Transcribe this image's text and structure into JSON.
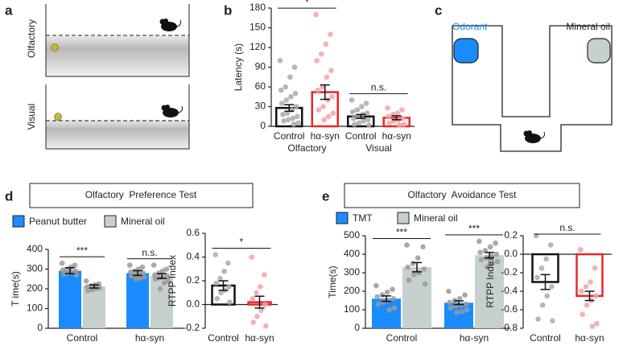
{
  "panel_a": {
    "letter": "a",
    "rows": [
      "Olfactory",
      "Visual"
    ]
  },
  "panel_b": {
    "letter": "b"
  },
  "panel_c": {
    "letter": "c",
    "left_label": "Odorant",
    "right_label": "Mineral oil"
  },
  "panel_d": {
    "letter": "d",
    "title": "Olfactory  Preference Test"
  },
  "panel_e": {
    "letter": "e",
    "title": "Olfactory  Avoidance Test"
  },
  "chart_data": [
    {
      "type": "bar",
      "ylabel": "Latency (s)",
      "categories": [
        "Control",
        "hα-syn",
        "Control",
        "hα-syn"
      ],
      "groups": [
        "Olfactory",
        "Visual"
      ],
      "values": [
        28,
        52,
        15,
        13
      ],
      "errors": [
        5,
        11,
        3,
        3
      ],
      "colors": [
        "#111111",
        "#e8262a",
        "#111111",
        "#e8262a"
      ],
      "point_colors": [
        "#aaaaaa",
        "#f5a3a3",
        "#aaaaaa",
        "#f5a3a3"
      ],
      "points": [
        [
          100,
          90,
          75,
          60,
          55,
          50,
          45,
          40,
          35,
          30,
          25,
          20,
          18,
          15,
          12,
          10,
          8,
          5,
          3
        ],
        [
          170,
          140,
          125,
          110,
          100,
          85,
          75,
          60,
          55,
          45,
          40,
          30,
          25,
          20,
          15,
          10
        ],
        [
          40,
          35,
          30,
          25,
          22,
          20,
          18,
          15,
          12,
          10,
          8,
          5,
          3,
          2
        ],
        [
          28,
          25,
          20,
          18,
          15,
          12,
          10,
          8,
          5,
          3,
          2
        ]
      ],
      "significance": [
        "*",
        "n.s."
      ],
      "ylim": [
        0,
        180
      ],
      "yticks": [
        0,
        30,
        60,
        90,
        120,
        150,
        180
      ]
    },
    {
      "type": "grouped-bar",
      "ylabel": "T ime(s)",
      "categories": [
        "Control",
        "hα-syn"
      ],
      "series": [
        {
          "name": "Peanut butter",
          "color": "#1a8cff",
          "values": [
            292,
            280
          ],
          "errors": [
            15,
            12
          ],
          "points": [
            [
              330,
              320,
              310,
              300,
              295,
              290,
              285,
              280,
              275,
              270
            ],
            [
              320,
              310,
              300,
              290,
              285,
              280,
              275,
              270,
              265,
              260,
              255,
              250
            ]
          ]
        },
        {
          "name": "Mineral oil",
          "color": "#c6d1cd",
          "values": [
            212,
            265
          ],
          "errors": [
            8,
            12
          ],
          "points": [
            [
              240,
              225,
              220,
              215,
              210,
              205,
              200,
              195,
              190
            ],
            [
              320,
              300,
              290,
              280,
              270,
              265,
              260,
              255,
              250,
              240,
              230,
              200
            ]
          ]
        }
      ],
      "significance": [
        "***",
        "n.s."
      ],
      "ylim": [
        0,
        400
      ],
      "yticks": [
        0,
        100,
        200,
        300,
        400
      ]
    },
    {
      "type": "bar",
      "ylabel": "RTPP Index",
      "categories": [
        "Control",
        "hα-syn"
      ],
      "values": [
        0.16,
        0.02
      ],
      "errors": [
        0.04,
        0.05
      ],
      "colors": [
        "#111111",
        "#e8262a"
      ],
      "point_colors": [
        "#aaaaaa",
        "#f5a3a3"
      ],
      "points": [
        [
          0.42,
          0.35,
          0.28,
          0.22,
          0.18,
          0.15,
          0.12,
          0.1,
          0.05,
          0.02
        ],
        [
          0.4,
          0.25,
          0.15,
          0.1,
          0.05,
          0.0,
          -0.05,
          -0.1,
          -0.15,
          -0.18
        ]
      ],
      "significance": [
        "*"
      ],
      "ylim": [
        -0.2,
        0.6
      ],
      "yticks": [
        -0.2,
        {
          "value": 0,
          "label": "0.0"
        },
        0.2,
        0.4,
        0.6
      ]
    },
    {
      "type": "grouped-bar",
      "ylabel": "Time(s)",
      "categories": [
        "Control",
        "hα-syn"
      ],
      "series": [
        {
          "name": "TMT",
          "color": "#1a8cff",
          "values": [
            160,
            138
          ],
          "errors": [
            15,
            10
          ],
          "points": [
            [
              230,
              210,
              195,
              180,
              170,
              160,
              150,
              140,
              130,
              110,
              100
            ],
            [
              200,
              180,
              160,
              150,
              140,
              130,
              125,
              120,
              110,
              100,
              90,
              85
            ]
          ]
        },
        {
          "name": "Mineral oil",
          "color": "#c6d1cd",
          "values": [
            330,
            395
          ],
          "errors": [
            25,
            15
          ],
          "points": [
            [
              450,
              440,
              380,
              350,
              330,
              320,
              300,
              290,
              260,
              240
            ],
            [
              470,
              460,
              440,
              420,
              410,
              400,
              390,
              380,
              370,
              360,
              350,
              330
            ]
          ]
        }
      ],
      "significance": [
        "***",
        "***"
      ],
      "ylim": [
        0,
        500
      ],
      "yticks": [
        0,
        100,
        200,
        300,
        400,
        500
      ]
    },
    {
      "type": "bar",
      "ylabel": "RTPP Index",
      "categories": [
        "Control",
        "hα-syn"
      ],
      "values": [
        -0.3,
        -0.45
      ],
      "errors": [
        0.08,
        0.05
      ],
      "colors": [
        "#111111",
        "#e8262a"
      ],
      "point_colors": [
        "#aaaaaa",
        "#f5a3a3"
      ],
      "points": [
        [
          0.2,
          0.1,
          -0.05,
          -0.15,
          -0.25,
          -0.35,
          -0.45,
          -0.55,
          -0.7,
          -0.72
        ],
        [
          0.05,
          -0.15,
          -0.3,
          -0.35,
          -0.4,
          -0.45,
          -0.5,
          -0.55,
          -0.65,
          -0.75,
          -0.78
        ]
      ],
      "significance": [
        "n.s."
      ],
      "ylim": [
        -0.8,
        0.2
      ],
      "yticks": [
        -0.8,
        -0.6,
        -0.4,
        -0.2,
        {
          "value": 0,
          "label": "0.0"
        },
        0.2
      ]
    }
  ]
}
